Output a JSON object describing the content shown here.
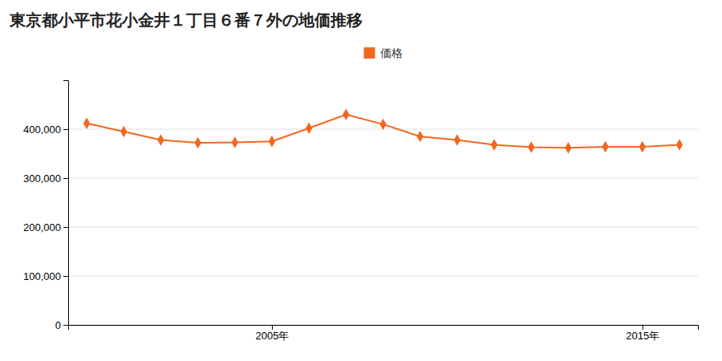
{
  "chart_data": {
    "type": "line",
    "title": "東京都小平市花小金井１丁目６番７外の地価推移",
    "x": [
      2000,
      2001,
      2002,
      2003,
      2004,
      2005,
      2006,
      2007,
      2008,
      2009,
      2010,
      2011,
      2012,
      2013,
      2014,
      2015,
      2016
    ],
    "series": [
      {
        "name": "価格",
        "color": "#f06820",
        "values": [
          412000,
          395000,
          378000,
          372000,
          373000,
          375000,
          402000,
          430000,
          410000,
          385000,
          378000,
          368000,
          363000,
          362000,
          364000,
          364000,
          368000
        ]
      }
    ],
    "marker": "diamond",
    "xlim": [
      1999.5,
      2016.5
    ],
    "xticks": [
      {
        "value": 2005,
        "label": "2005年"
      },
      {
        "value": 2015,
        "label": "2015年"
      }
    ],
    "ylim": [
      0,
      500000
    ],
    "yticks": [
      0,
      {
        "value": 100000,
        "label": "100,000"
      },
      {
        "value": 200000,
        "label": "200,000"
      },
      {
        "value": 300000,
        "label": "300,000"
      },
      {
        "value": 400000,
        "label": "400,000"
      }
    ],
    "grid": true,
    "legend": "top"
  }
}
